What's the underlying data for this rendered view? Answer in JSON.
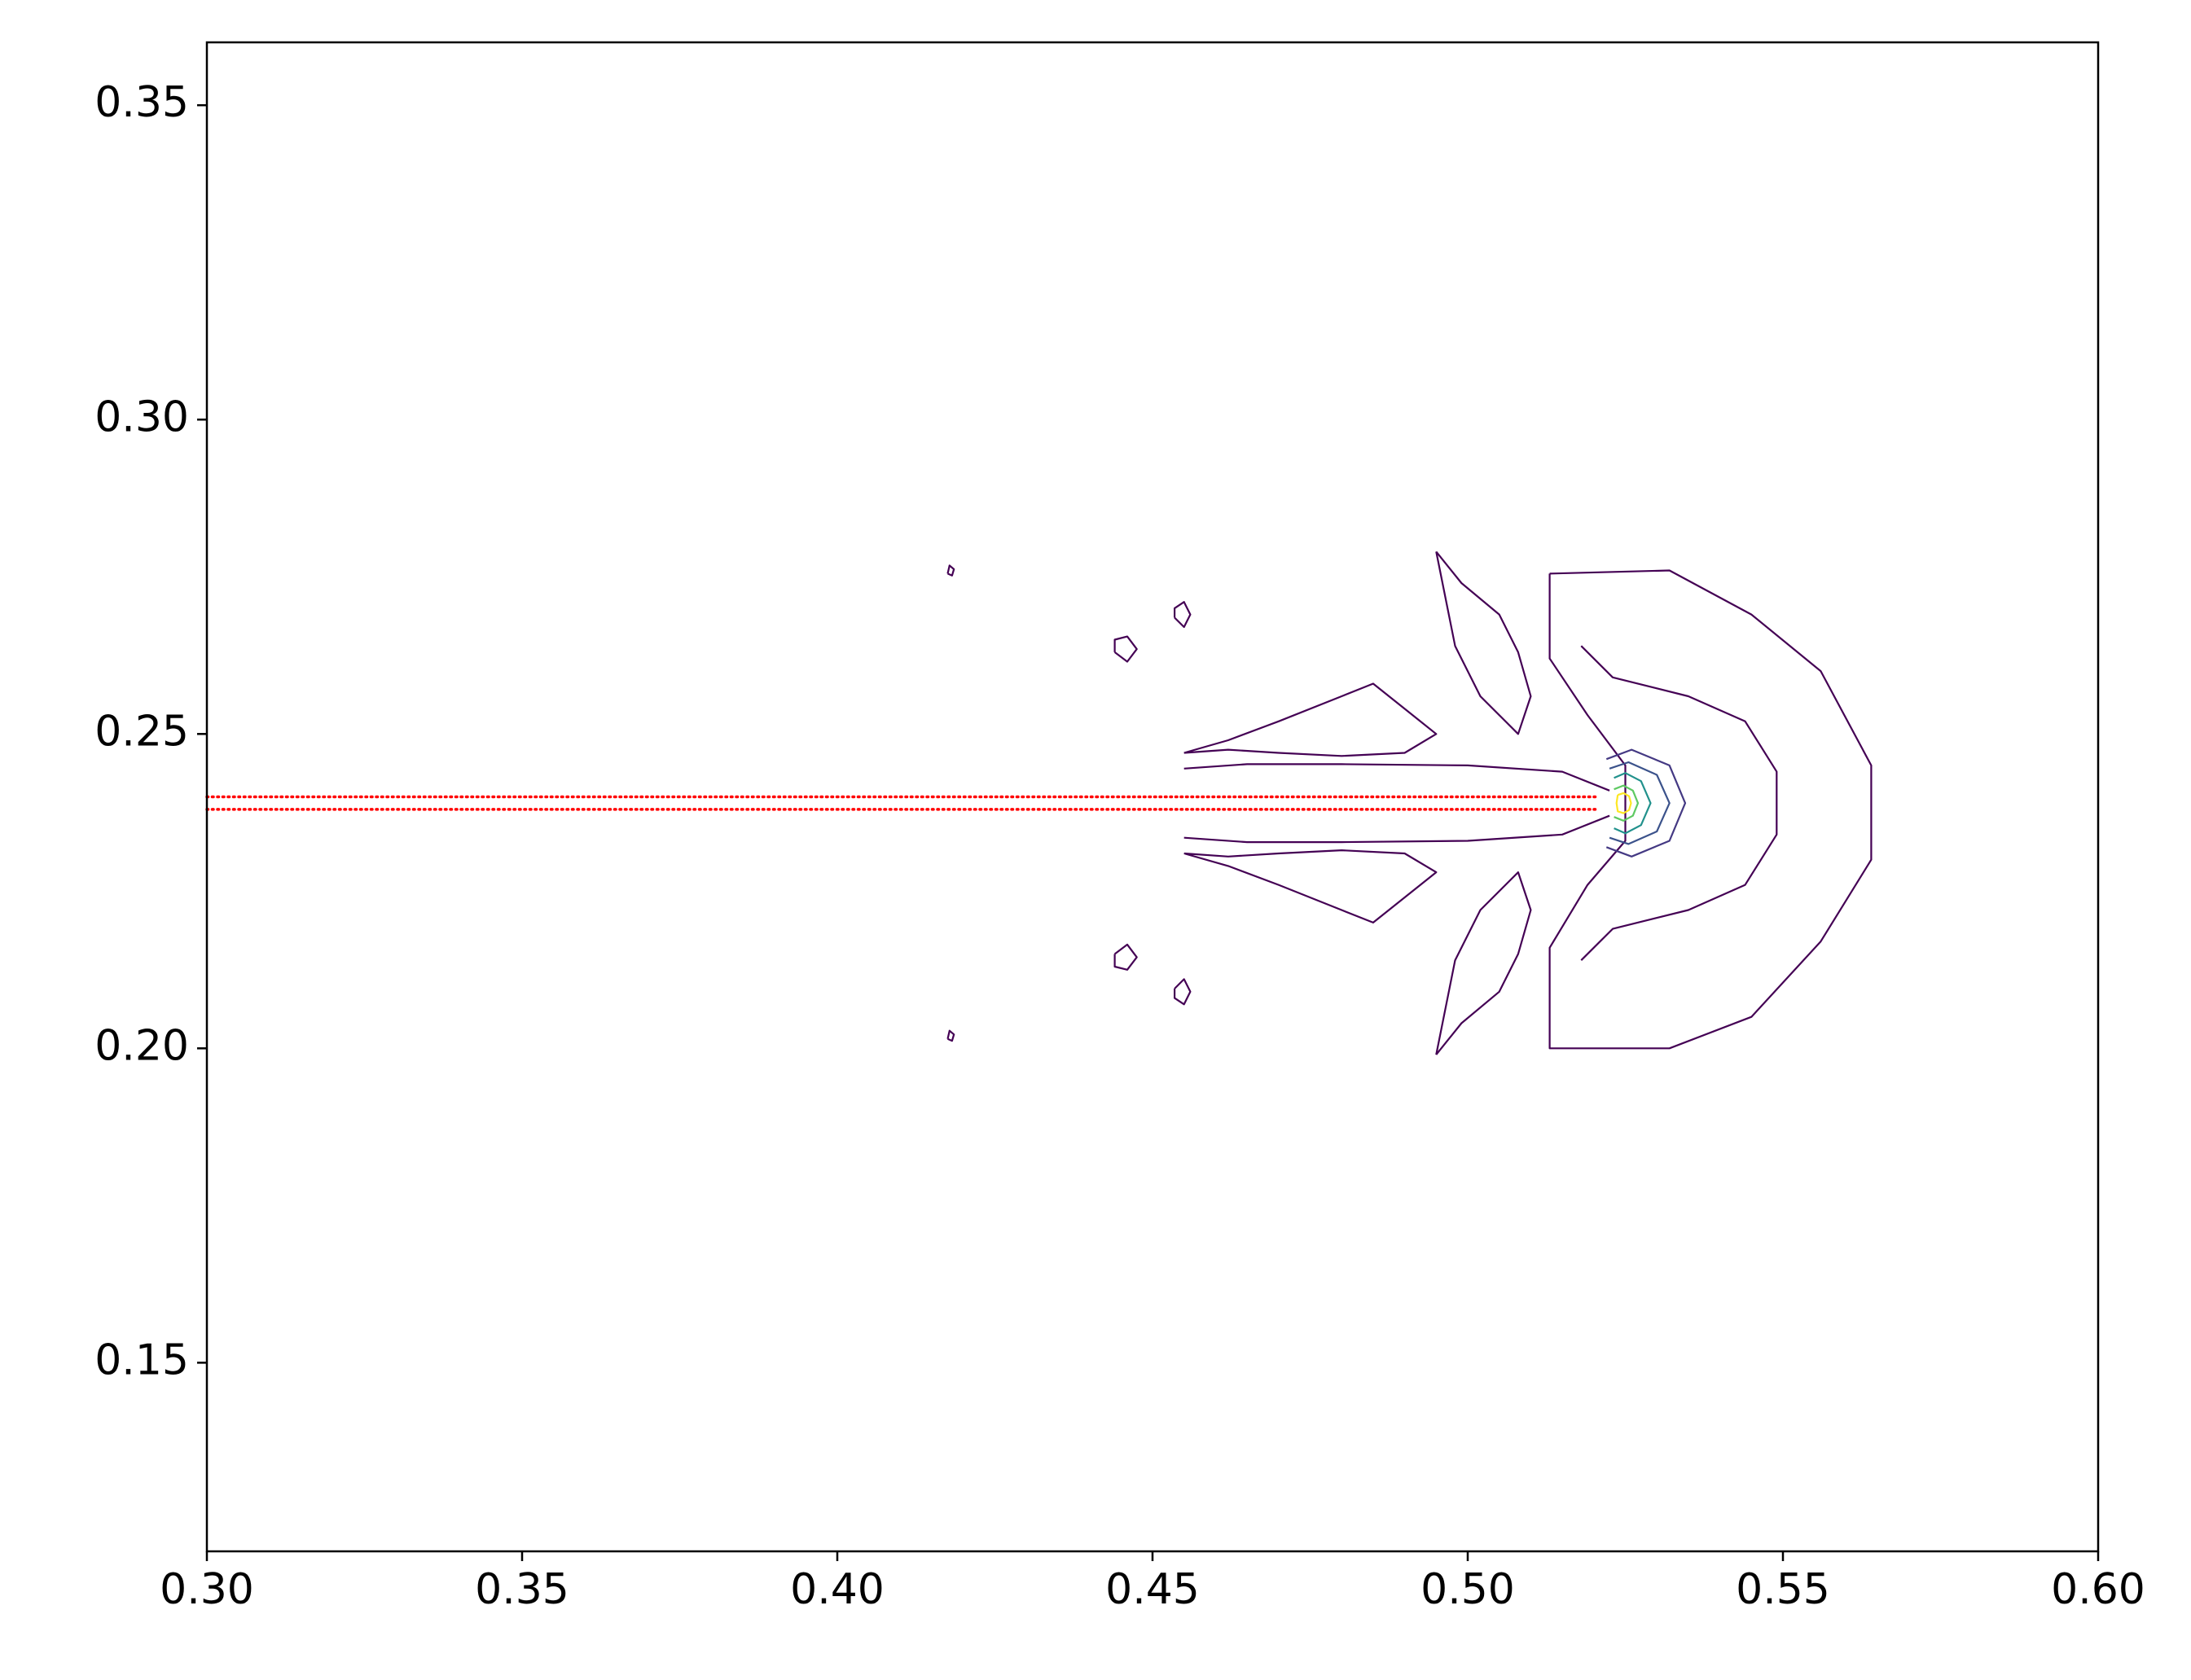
{
  "chart_data": {
    "type": "contour",
    "xlim": [
      0.3,
      0.6
    ],
    "ylim": [
      0.12,
      0.36
    ],
    "xticks": [
      {
        "value": 0.3,
        "label": "0.30"
      },
      {
        "value": 0.35,
        "label": "0.35"
      },
      {
        "value": 0.4,
        "label": "0.40"
      },
      {
        "value": 0.45,
        "label": "0.45"
      },
      {
        "value": 0.5,
        "label": "0.50"
      },
      {
        "value": 0.55,
        "label": "0.55"
      },
      {
        "value": 0.6,
        "label": "0.60"
      }
    ],
    "yticks": [
      {
        "value": 0.15,
        "label": "0.15"
      },
      {
        "value": 0.2,
        "label": "0.20"
      },
      {
        "value": 0.25,
        "label": "0.25"
      },
      {
        "value": 0.3,
        "label": "0.30"
      },
      {
        "value": 0.35,
        "label": "0.35"
      }
    ],
    "series": [
      {
        "color": "#ff0000",
        "linestyle": "dotted",
        "x": [
          0.3,
          0.5207
        ],
        "y": [
          0.24,
          0.24
        ]
      },
      {
        "color": "#ff0000",
        "linestyle": "dotted",
        "x": [
          0.3,
          0.5207
        ],
        "y": [
          0.238,
          0.238
        ]
      },
      {
        "color": "#440154",
        "x": [
          0.513,
          0.532,
          0.545,
          0.556,
          0.564,
          0.564,
          0.556,
          0.545,
          0.532,
          0.513,
          0.513,
          0.519,
          0.525,
          0.525,
          0.519,
          0.513,
          0.513
        ],
        "y": [
          0.2755,
          0.276,
          0.269,
          0.26,
          0.245,
          0.23,
          0.217,
          0.205,
          0.2,
          0.2,
          0.216,
          0.226,
          0.233,
          0.245,
          0.253,
          0.262,
          0.2755
        ]
      },
      {
        "color": "#440154",
        "x": [
          0.518,
          0.523,
          0.535,
          0.544,
          0.549,
          0.549,
          0.544,
          0.535,
          0.523,
          0.518
        ],
        "y": [
          0.264,
          0.259,
          0.256,
          0.252,
          0.244,
          0.234,
          0.226,
          0.222,
          0.219,
          0.214
        ]
      },
      {
        "color": "#440154",
        "x": [
          0.5225,
          0.515,
          0.5,
          0.48,
          0.465,
          0.455
        ],
        "y": [
          0.241,
          0.244,
          0.245,
          0.2452,
          0.2452,
          0.2445
        ]
      },
      {
        "color": "#440154",
        "x": [
          0.5225,
          0.515,
          0.5,
          0.48,
          0.465,
          0.455
        ],
        "y": [
          0.237,
          0.234,
          0.233,
          0.2328,
          0.2328,
          0.2335
        ]
      },
      {
        "color": "#440154",
        "x": [
          0.455,
          0.462,
          0.47,
          0.48,
          0.485,
          0.49,
          0.495,
          0.49,
          0.48,
          0.47,
          0.462,
          0.455
        ],
        "y": [
          0.247,
          0.249,
          0.252,
          0.256,
          0.258,
          0.254,
          0.25,
          0.247,
          0.2465,
          0.247,
          0.2475,
          0.247
        ]
      },
      {
        "color": "#440154",
        "x": [
          0.455,
          0.462,
          0.47,
          0.48,
          0.485,
          0.49,
          0.495,
          0.49,
          0.48,
          0.47,
          0.462,
          0.455
        ],
        "y": [
          0.231,
          0.229,
          0.226,
          0.222,
          0.22,
          0.224,
          0.228,
          0.231,
          0.2315,
          0.231,
          0.2305,
          0.231
        ]
      },
      {
        "color": "#440154",
        "x": [
          0.495,
          0.499,
          0.505,
          0.508,
          0.51,
          0.508,
          0.502,
          0.498,
          0.495
        ],
        "y": [
          0.279,
          0.274,
          0.269,
          0.263,
          0.256,
          0.25,
          0.256,
          0.264,
          0.279
        ]
      },
      {
        "color": "#440154",
        "x": [
          0.495,
          0.499,
          0.505,
          0.508,
          0.51,
          0.508,
          0.502,
          0.498,
          0.495
        ],
        "y": [
          0.199,
          0.204,
          0.209,
          0.215,
          0.222,
          0.228,
          0.222,
          0.214,
          0.199
        ]
      },
      {
        "color": "#440154",
        "x": [
          0.4175,
          0.4182,
          0.4185,
          0.4178,
          0.4175
        ],
        "y": [
          0.2755,
          0.2752,
          0.2762,
          0.2768,
          0.2755
        ]
      },
      {
        "color": "#440154",
        "x": [
          0.4175,
          0.4182,
          0.4185,
          0.4178,
          0.4175
        ],
        "y": [
          0.2015,
          0.2012,
          0.2022,
          0.2028,
          0.2015
        ]
      },
      {
        "color": "#440154",
        "x": [
          0.444,
          0.446,
          0.4475,
          0.446,
          0.444,
          0.444
        ],
        "y": [
          0.263,
          0.2615,
          0.2635,
          0.2655,
          0.265,
          0.263
        ]
      },
      {
        "color": "#440154",
        "x": [
          0.444,
          0.446,
          0.4475,
          0.446,
          0.444,
          0.444
        ],
        "y": [
          0.215,
          0.2165,
          0.2145,
          0.2125,
          0.213,
          0.215
        ]
      },
      {
        "color": "#440154",
        "x": [
          0.4535,
          0.455,
          0.456,
          0.455,
          0.4535,
          0.4535
        ],
        "y": [
          0.2685,
          0.267,
          0.269,
          0.271,
          0.27,
          0.2685
        ]
      },
      {
        "color": "#440154",
        "x": [
          0.4535,
          0.455,
          0.456,
          0.455,
          0.4535,
          0.4535
        ],
        "y": [
          0.2095,
          0.211,
          0.209,
          0.207,
          0.208,
          0.2095
        ]
      },
      {
        "color": "#443983",
        "x": [
          0.522,
          0.526,
          0.532,
          0.5345,
          0.532,
          0.526,
          0.522
        ],
        "y": [
          0.246,
          0.2475,
          0.245,
          0.239,
          0.233,
          0.2305,
          0.232
        ]
      },
      {
        "color": "#3b528b",
        "x": [
          0.5225,
          0.5255,
          0.53,
          0.532,
          0.53,
          0.5255,
          0.5225
        ],
        "y": [
          0.2445,
          0.2455,
          0.2435,
          0.239,
          0.2345,
          0.2325,
          0.2335
        ]
      },
      {
        "color": "#21918c",
        "x": [
          0.5232,
          0.525,
          0.5275,
          0.529,
          0.5275,
          0.525,
          0.5232
        ],
        "y": [
          0.243,
          0.2438,
          0.2425,
          0.239,
          0.2355,
          0.2342,
          0.235
        ]
      },
      {
        "color": "#5ec962",
        "x": [
          0.5232,
          0.5247,
          0.5262,
          0.527,
          0.5262,
          0.5247,
          0.5232
        ],
        "y": [
          0.2412,
          0.2418,
          0.241,
          0.239,
          0.237,
          0.2362,
          0.2368
        ]
      },
      {
        "color": "#fde725",
        "x": [
          0.5238,
          0.5247,
          0.5256,
          0.5259,
          0.5256,
          0.5247,
          0.5238,
          0.5236,
          0.5238
        ],
        "y": [
          0.2403,
          0.2406,
          0.2401,
          0.239,
          0.2379,
          0.2374,
          0.2377,
          0.239,
          0.2403
        ]
      }
    ]
  }
}
